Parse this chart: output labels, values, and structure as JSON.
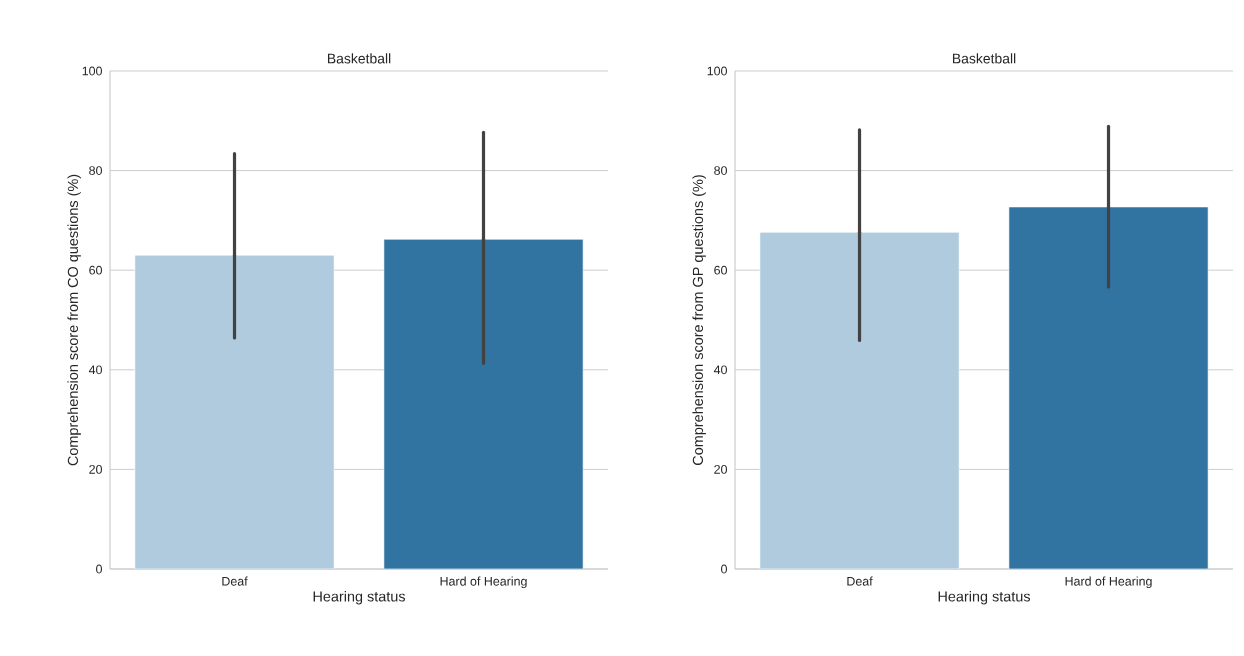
{
  "chart_data": [
    {
      "type": "bar",
      "title": "Basketball",
      "xlabel": "Hearing status",
      "ylabel": "Comprehension score from CO questions (%)",
      "categories": [
        "Deaf",
        "Hard of Hearing"
      ],
      "values": [
        63.0,
        66.2
      ],
      "colors": [
        "#afcbdd",
        "#3274a1"
      ],
      "errors": [
        [
          46.4,
          83.4
        ],
        [
          41.3,
          87.7
        ]
      ],
      "ylim": [
        0,
        100
      ],
      "yticks": [
        0,
        20,
        40,
        60,
        80,
        100
      ],
      "grid": "y"
    },
    {
      "type": "bar",
      "title": "Basketball",
      "xlabel": "Hearing status",
      "ylabel": "Comprehension score from GP questions (%)",
      "categories": [
        "Deaf",
        "Hard of Hearing"
      ],
      "values": [
        67.6,
        72.7
      ],
      "colors": [
        "#afcbdd",
        "#3274a1"
      ],
      "errors": [
        [
          45.9,
          88.2
        ],
        [
          56.6,
          88.9
        ]
      ],
      "ylim": [
        0,
        100
      ],
      "yticks": [
        0,
        20,
        40,
        60,
        80,
        100
      ],
      "grid": "y"
    }
  ]
}
